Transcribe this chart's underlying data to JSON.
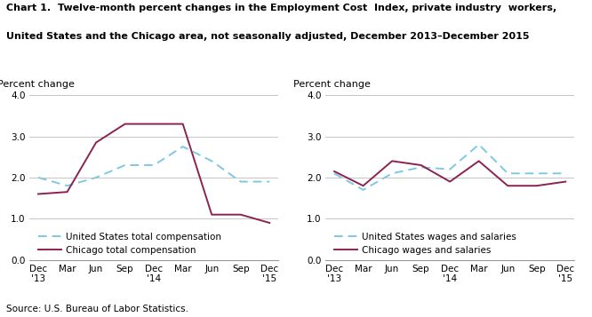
{
  "title_line1": "Chart 1.  Twelve-month percent changes in the Employment Cost  Index, private industry  workers,",
  "title_line2": "United States and the Chicago area, not seasonally adjusted, December 2013–December 2015",
  "ylabel": "Percent change",
  "source": "Source: U.S. Bureau of Labor Statistics.",
  "x_labels": [
    "Dec\n'13",
    "Mar",
    "Jun",
    "Sep",
    "Dec\n'14",
    "Mar",
    "Jun",
    "Sep",
    "Dec\n'15"
  ],
  "left_us_tc": [
    2.0,
    1.8,
    2.0,
    2.3,
    2.3,
    2.75,
    2.4,
    1.9,
    1.9
  ],
  "left_chi_tc": [
    1.6,
    1.65,
    2.85,
    3.3,
    3.3,
    3.3,
    1.1,
    1.1,
    0.9
  ],
  "right_us_ws": [
    2.1,
    1.7,
    2.1,
    2.25,
    2.2,
    2.8,
    2.1,
    2.1,
    2.1
  ],
  "right_chi_ws": [
    2.15,
    1.8,
    2.4,
    2.3,
    1.9,
    2.4,
    1.8,
    1.8,
    1.9
  ],
  "legend_left1": "United States total compensation",
  "legend_left2": "Chicago total compensation",
  "legend_right1": "United States wages and salaries",
  "legend_right2": "Chicago wages and salaries",
  "ylim": [
    0.0,
    4.0
  ],
  "yticks": [
    0.0,
    1.0,
    2.0,
    3.0,
    4.0
  ],
  "us_color": "#7ec8e3",
  "chicago_color": "#8b2252",
  "background_color": "#ffffff",
  "grid_color": "#bbbbbb",
  "title_color": "#000000",
  "title_fontsize": 8.0,
  "axis_label_fontsize": 8.0,
  "tick_fontsize": 7.5,
  "legend_fontsize": 7.5,
  "source_fontsize": 7.5
}
